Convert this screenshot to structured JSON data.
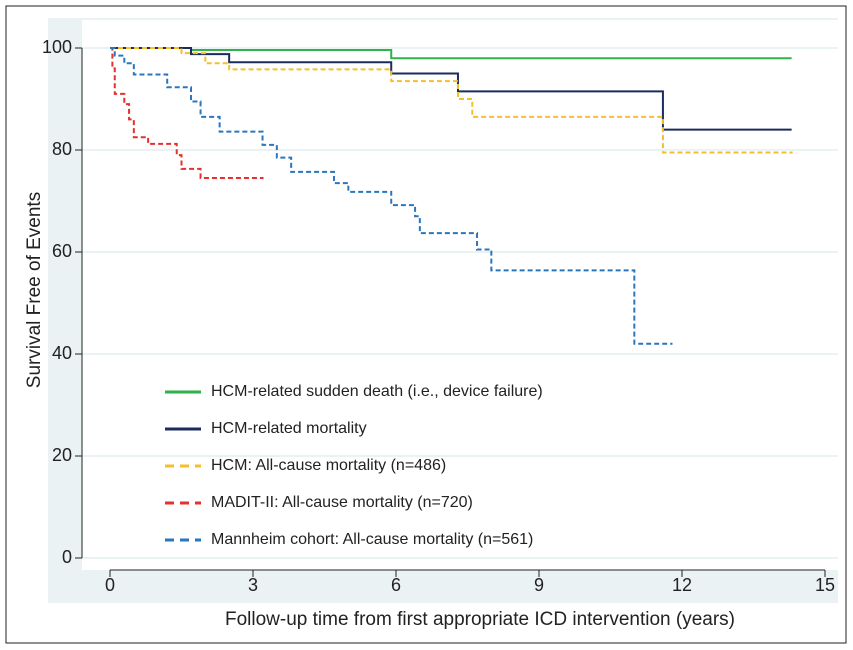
{
  "chart_data": {
    "type": "line",
    "step": true,
    "x_label": "Follow-up time from first appropriate ICD intervention (years)",
    "y_label": "Survival Free of Events",
    "xlim": [
      0,
      15
    ],
    "ylim": [
      0,
      100
    ],
    "xticks": [
      0,
      3,
      6,
      9,
      12,
      15
    ],
    "yticks": [
      0,
      20,
      40,
      60,
      80,
      100
    ],
    "grid": true,
    "legend": "bottom-left",
    "series": [
      {
        "name": "HCM-related sudden death (i.e., device failure)",
        "color": "#2db34a",
        "dashed": false,
        "x": [
          0,
          1.7,
          5.9,
          14.3
        ],
        "values": [
          100,
          99.6,
          98,
          98
        ]
      },
      {
        "name": "HCM-related mortality",
        "color": "#1b2c5c",
        "dashed": false,
        "x": [
          0,
          1.7,
          2.5,
          5.9,
          7.3,
          11.6,
          14.3
        ],
        "values": [
          100,
          98.8,
          97.2,
          95,
          91.5,
          84,
          84
        ]
      },
      {
        "name": "HCM: All-cause mortality (n=486)",
        "color": "#f4bf2a",
        "dashed": true,
        "x": [
          0,
          1.5,
          2,
          2.5,
          5.9,
          7.3,
          7.6,
          11.6,
          14.3
        ],
        "values": [
          100,
          99,
          97,
          95.8,
          93.5,
          90,
          86.5,
          79.5,
          79.3
        ]
      },
      {
        "name": "MADIT-II: All-cause mortality (n=720)",
        "color": "#e4302e",
        "dashed": true,
        "x": [
          0,
          0.05,
          0.1,
          0.3,
          0.4,
          0.5,
          0.8,
          1.4,
          1.5,
          1.9,
          3.2
        ],
        "values": [
          100,
          96,
          91,
          89,
          86,
          82.5,
          81.2,
          79,
          76.3,
          74.5,
          74.3
        ]
      },
      {
        "name": "Mannheim cohort: All-cause mortality (n=561)",
        "color": "#2a76bf",
        "dashed": true,
        "x": [
          0,
          0.1,
          0.3,
          0.5,
          1.2,
          1.7,
          1.9,
          2.3,
          3.2,
          3.5,
          3.8,
          4.7,
          5,
          5.9,
          6.4,
          6.5,
          7.7,
          8,
          11,
          11.8
        ],
        "values": [
          100,
          98.5,
          97,
          94.8,
          92.3,
          89.5,
          86.5,
          83.6,
          81,
          78.5,
          75.7,
          73.5,
          71.8,
          69.2,
          67,
          63.7,
          60.5,
          56.4,
          42,
          42
        ]
      }
    ]
  }
}
